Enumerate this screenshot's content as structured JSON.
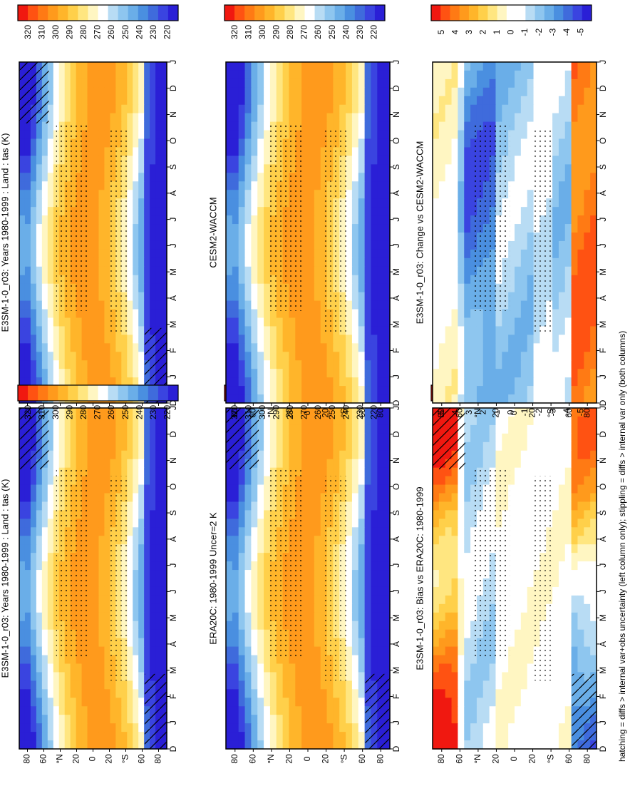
{
  "footer_note": "hatching = diffs > internal var+obs uncertainty (left column only); stippling = diffs > internal var only (both columns)",
  "colors": {
    "temp_scale": [
      "#2a1fd6",
      "#3a44e0",
      "#3f6bdc",
      "#4a8fe0",
      "#6aaee8",
      "#8ec6ef",
      "#b8dcf4",
      "#ffffff",
      "#fff6c2",
      "#ffe680",
      "#ffd04a",
      "#ffb52a",
      "#ff9a1c",
      "#ff7a14",
      "#ff5212",
      "#f01810"
    ],
    "anom_scale": [
      "#2a1fd6",
      "#3a44e0",
      "#3f6bdc",
      "#4a8fe0",
      "#6aaee8",
      "#8ec6ef",
      "#b8dcf4",
      "#ffffff",
      "#ffffff",
      "#fff6c2",
      "#ffe680",
      "#ffd04a",
      "#ffb52a",
      "#ff9a1c",
      "#ff7a14",
      "#ff5212",
      "#f01810"
    ]
  },
  "axis": {
    "months": [
      "D",
      "J",
      "F",
      "M",
      "A",
      "M",
      "J",
      "J",
      "A",
      "S",
      "O",
      "N",
      "D",
      "J"
    ],
    "lat_ticks": [
      "80",
      "60",
      "°N",
      "20",
      "0",
      "20",
      "°S",
      "60",
      "80"
    ]
  },
  "chart_data": [
    {
      "type": "heatmap",
      "title": "E3SM-1-0_r03: Years 1980-1999 : Land : tas (K)",
      "x": [
        "D",
        "J",
        "F",
        "M",
        "A",
        "M",
        "J",
        "J",
        "A",
        "S",
        "O",
        "N",
        "D",
        "J"
      ],
      "ylabels": [
        "80",
        "60",
        "°N",
        "20",
        "0",
        "20",
        "°S",
        "60",
        "80"
      ],
      "colorbar": {
        "ticks": [
          "320",
          "310",
          "300",
          "290",
          "280",
          "270",
          "260",
          "250",
          "240",
          "230",
          "220"
        ],
        "range": [
          215,
          325
        ]
      },
      "field": "climatology"
    },
    {
      "type": "heatmap",
      "title": "E3SM-1-0_r03: Years 1980-1999 : Land : tas (K)",
      "x": [
        "D",
        "J",
        "F",
        "M",
        "A",
        "M",
        "J",
        "J",
        "A",
        "S",
        "O",
        "N",
        "D",
        "J"
      ],
      "ylabels": [
        "80",
        "60",
        "°N",
        "20",
        "0",
        "20",
        "°S",
        "60",
        "80"
      ],
      "colorbar": {
        "ticks": [
          "320",
          "310",
          "300",
          "290",
          "280",
          "270",
          "260",
          "250",
          "240",
          "230",
          "220"
        ],
        "range": [
          215,
          325
        ]
      },
      "field": "climatology"
    },
    {
      "type": "heatmap",
      "title": "ERA20C: 1980-1999 Uncer=2 K",
      "x": [
        "D",
        "J",
        "F",
        "M",
        "A",
        "M",
        "J",
        "J",
        "A",
        "S",
        "O",
        "N",
        "D",
        "J"
      ],
      "ylabels": [
        "80",
        "60",
        "°N",
        "20",
        "0",
        "20",
        "°S",
        "60",
        "80"
      ],
      "colorbar": {
        "ticks": [
          "320",
          "310",
          "300",
          "290",
          "280",
          "270",
          "260",
          "250",
          "240",
          "230",
          "220"
        ],
        "range": [
          215,
          325
        ]
      },
      "field": "climatology"
    },
    {
      "type": "heatmap",
      "title": "CESM2-WACCM",
      "x": [
        "D",
        "J",
        "F",
        "M",
        "A",
        "M",
        "J",
        "J",
        "A",
        "S",
        "O",
        "N",
        "D",
        "J"
      ],
      "ylabels": [
        "80",
        "60",
        "°N",
        "20",
        "0",
        "20",
        "°S",
        "60",
        "80"
      ],
      "colorbar": {
        "ticks": [
          "320",
          "310",
          "300",
          "290",
          "280",
          "270",
          "260",
          "250",
          "240",
          "230",
          "220"
        ],
        "range": [
          215,
          325
        ]
      },
      "field": "climatology"
    },
    {
      "type": "heatmap",
      "title": "E3SM-1-0_r03: Bias vs ERA20C: 1980-1999",
      "x": [
        "D",
        "J",
        "F",
        "M",
        "A",
        "M",
        "J",
        "J",
        "A",
        "S",
        "O",
        "N",
        "D",
        "J"
      ],
      "ylabels": [
        "80",
        "60",
        "°N",
        "20",
        "0",
        "20",
        "°S",
        "60",
        "80"
      ],
      "colorbar": {
        "ticks": [
          "5",
          "4",
          "3",
          "2",
          "1",
          "0",
          "-1",
          "-2",
          "-3",
          "-4",
          "-5"
        ],
        "range": [
          -5.5,
          5.5
        ]
      },
      "field": "bias"
    },
    {
      "type": "heatmap",
      "title": "E3SM-1-0_r03: Change vs CESM2-WACCM",
      "x": [
        "D",
        "J",
        "F",
        "M",
        "A",
        "M",
        "J",
        "J",
        "A",
        "S",
        "O",
        "N",
        "D",
        "J"
      ],
      "ylabels": [
        "80",
        "60",
        "°N",
        "20",
        "0",
        "20",
        "°S",
        "60",
        "80"
      ],
      "colorbar": {
        "ticks": [
          "5",
          "4",
          "3",
          "2",
          "1",
          "0",
          "-1",
          "-2",
          "-3",
          "-4",
          "-5"
        ],
        "range": [
          -5.5,
          5.5
        ]
      },
      "field": "change"
    }
  ]
}
